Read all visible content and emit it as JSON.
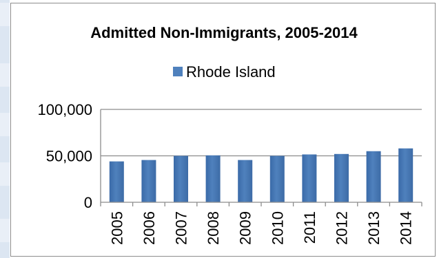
{
  "chart_data": {
    "type": "bar",
    "title": "Admitted Non-Immigrants, 2005-2014",
    "legend": {
      "position": "top"
    },
    "categories": [
      "2005",
      "2006",
      "2007",
      "2008",
      "2009",
      "2010",
      "2011",
      "2012",
      "2013",
      "2014"
    ],
    "series": [
      {
        "name": "Rhode Island",
        "color": "#4f81bd",
        "values": [
          44000,
          45500,
          50000,
          50500,
          45500,
          50000,
          51500,
          52000,
          55000,
          58000
        ]
      }
    ],
    "ylim": [
      0,
      100000
    ],
    "yticks": [
      {
        "value": 0,
        "label": "0"
      },
      {
        "value": 50000,
        "label": "50,000"
      },
      {
        "value": 100000,
        "label": "100,000"
      }
    ],
    "grid": true,
    "xlabel": "",
    "ylabel": ""
  }
}
